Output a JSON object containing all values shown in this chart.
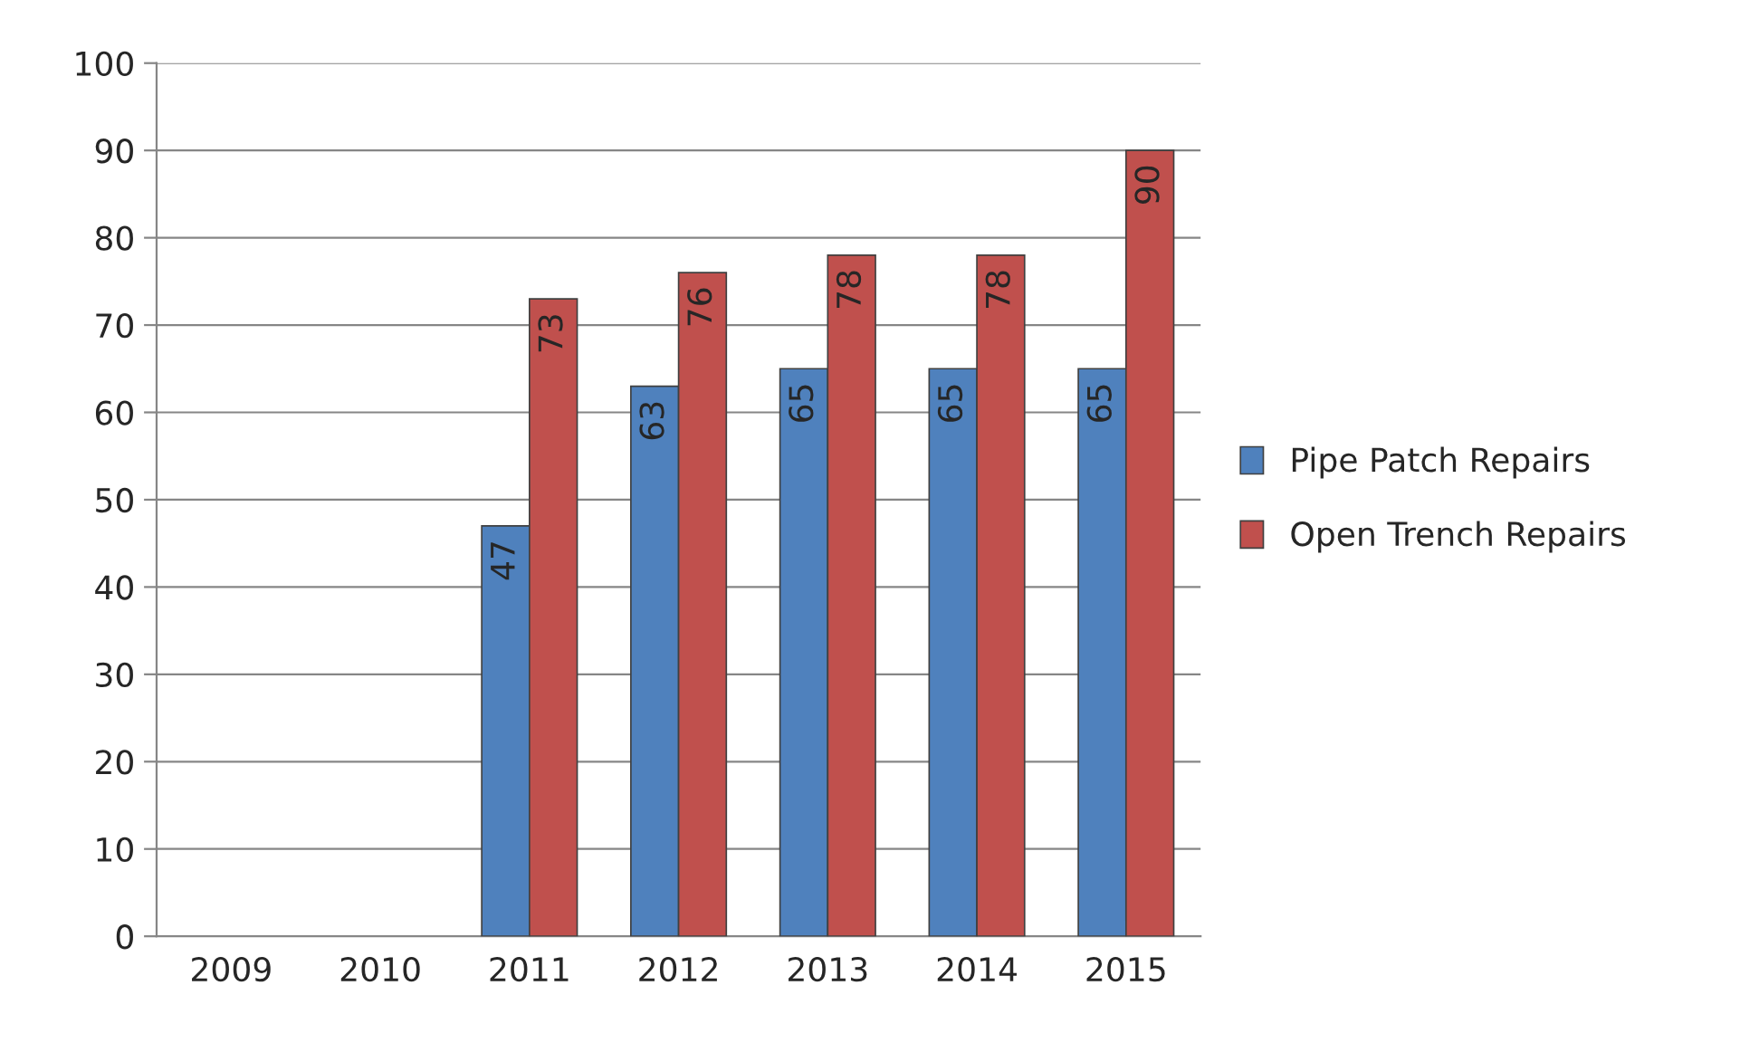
{
  "chart_data": {
    "type": "bar",
    "categories": [
      "2009",
      "2010",
      "2011",
      "2012",
      "2013",
      "2014",
      "2015"
    ],
    "series": [
      {
        "name": "Pipe Patch Repairs",
        "color": "#4f81bd",
        "values": [
          null,
          null,
          47,
          63,
          65,
          65,
          65
        ]
      },
      {
        "name": "Open Trench Repairs",
        "color": "#c0504d",
        "values": [
          null,
          null,
          73,
          76,
          78,
          78,
          90
        ]
      }
    ],
    "ylim": [
      0,
      100
    ],
    "yticks": [
      0,
      10,
      20,
      30,
      40,
      50,
      60,
      70,
      80,
      90,
      100
    ],
    "grid": "y",
    "legend": "right",
    "data_labels": true
  }
}
